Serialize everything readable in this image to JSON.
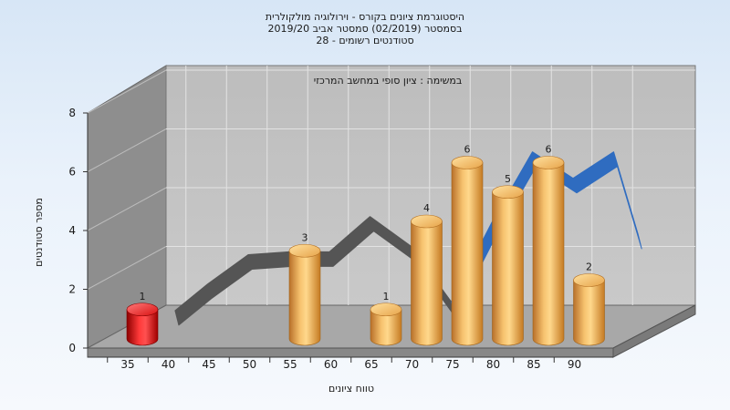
{
  "chart_data": {
    "type": "bar",
    "title_lines": [
      "היסטוגרמת ציונים בקורס - וירולוגיה מולקולרית",
      "בסמסטר  (02/2019)  סמסטר אביב 2019/20",
      "סטודנטים רשומים - 28"
    ],
    "inner_title": "במשימה : ציון סופי במחשב המרכזי",
    "xlabel": "טווח ציונים",
    "ylabel": "מספר סטודנטים",
    "x_ticks": [
      "35",
      "40",
      "45",
      "50",
      "55",
      "60",
      "65",
      "70",
      "75",
      "80",
      "85",
      "90"
    ],
    "y_ticks": [
      "0",
      "2",
      "4",
      "6",
      "8"
    ],
    "ylim": [
      0,
      8
    ],
    "bars": [
      {
        "bin": "35",
        "value": 1,
        "label": "1",
        "color": "#e01010"
      },
      {
        "bin": "55",
        "value": 3,
        "label": "3",
        "color": "#f0a030"
      },
      {
        "bin": "65",
        "value": 1,
        "label": "1",
        "color": "#f0a030"
      },
      {
        "bin": "70",
        "value": 4,
        "label": "4",
        "color": "#f0a030"
      },
      {
        "bin": "75",
        "value": 6,
        "label": "6",
        "color": "#f0a030"
      },
      {
        "bin": "80",
        "value": 5,
        "label": "5",
        "color": "#f0a030"
      },
      {
        "bin": "85",
        "value": 6,
        "label": "6",
        "color": "#f0a030"
      },
      {
        "bin": "90",
        "value": 2,
        "label": "2",
        "color": "#f0a030"
      }
    ],
    "curve": {
      "x": [
        36,
        40,
        45,
        50,
        55,
        60,
        65,
        70,
        75,
        80,
        85,
        90,
        93
      ],
      "y": [
        0.3,
        1.2,
        2.2,
        2.3,
        2.3,
        3.5,
        2.5,
        0.6,
        3.3,
        5.7,
        4.8,
        5.7,
        2.9
      ],
      "colors": {
        "below": "#555555",
        "above": "#2f6cc0"
      }
    },
    "grid": true
  }
}
